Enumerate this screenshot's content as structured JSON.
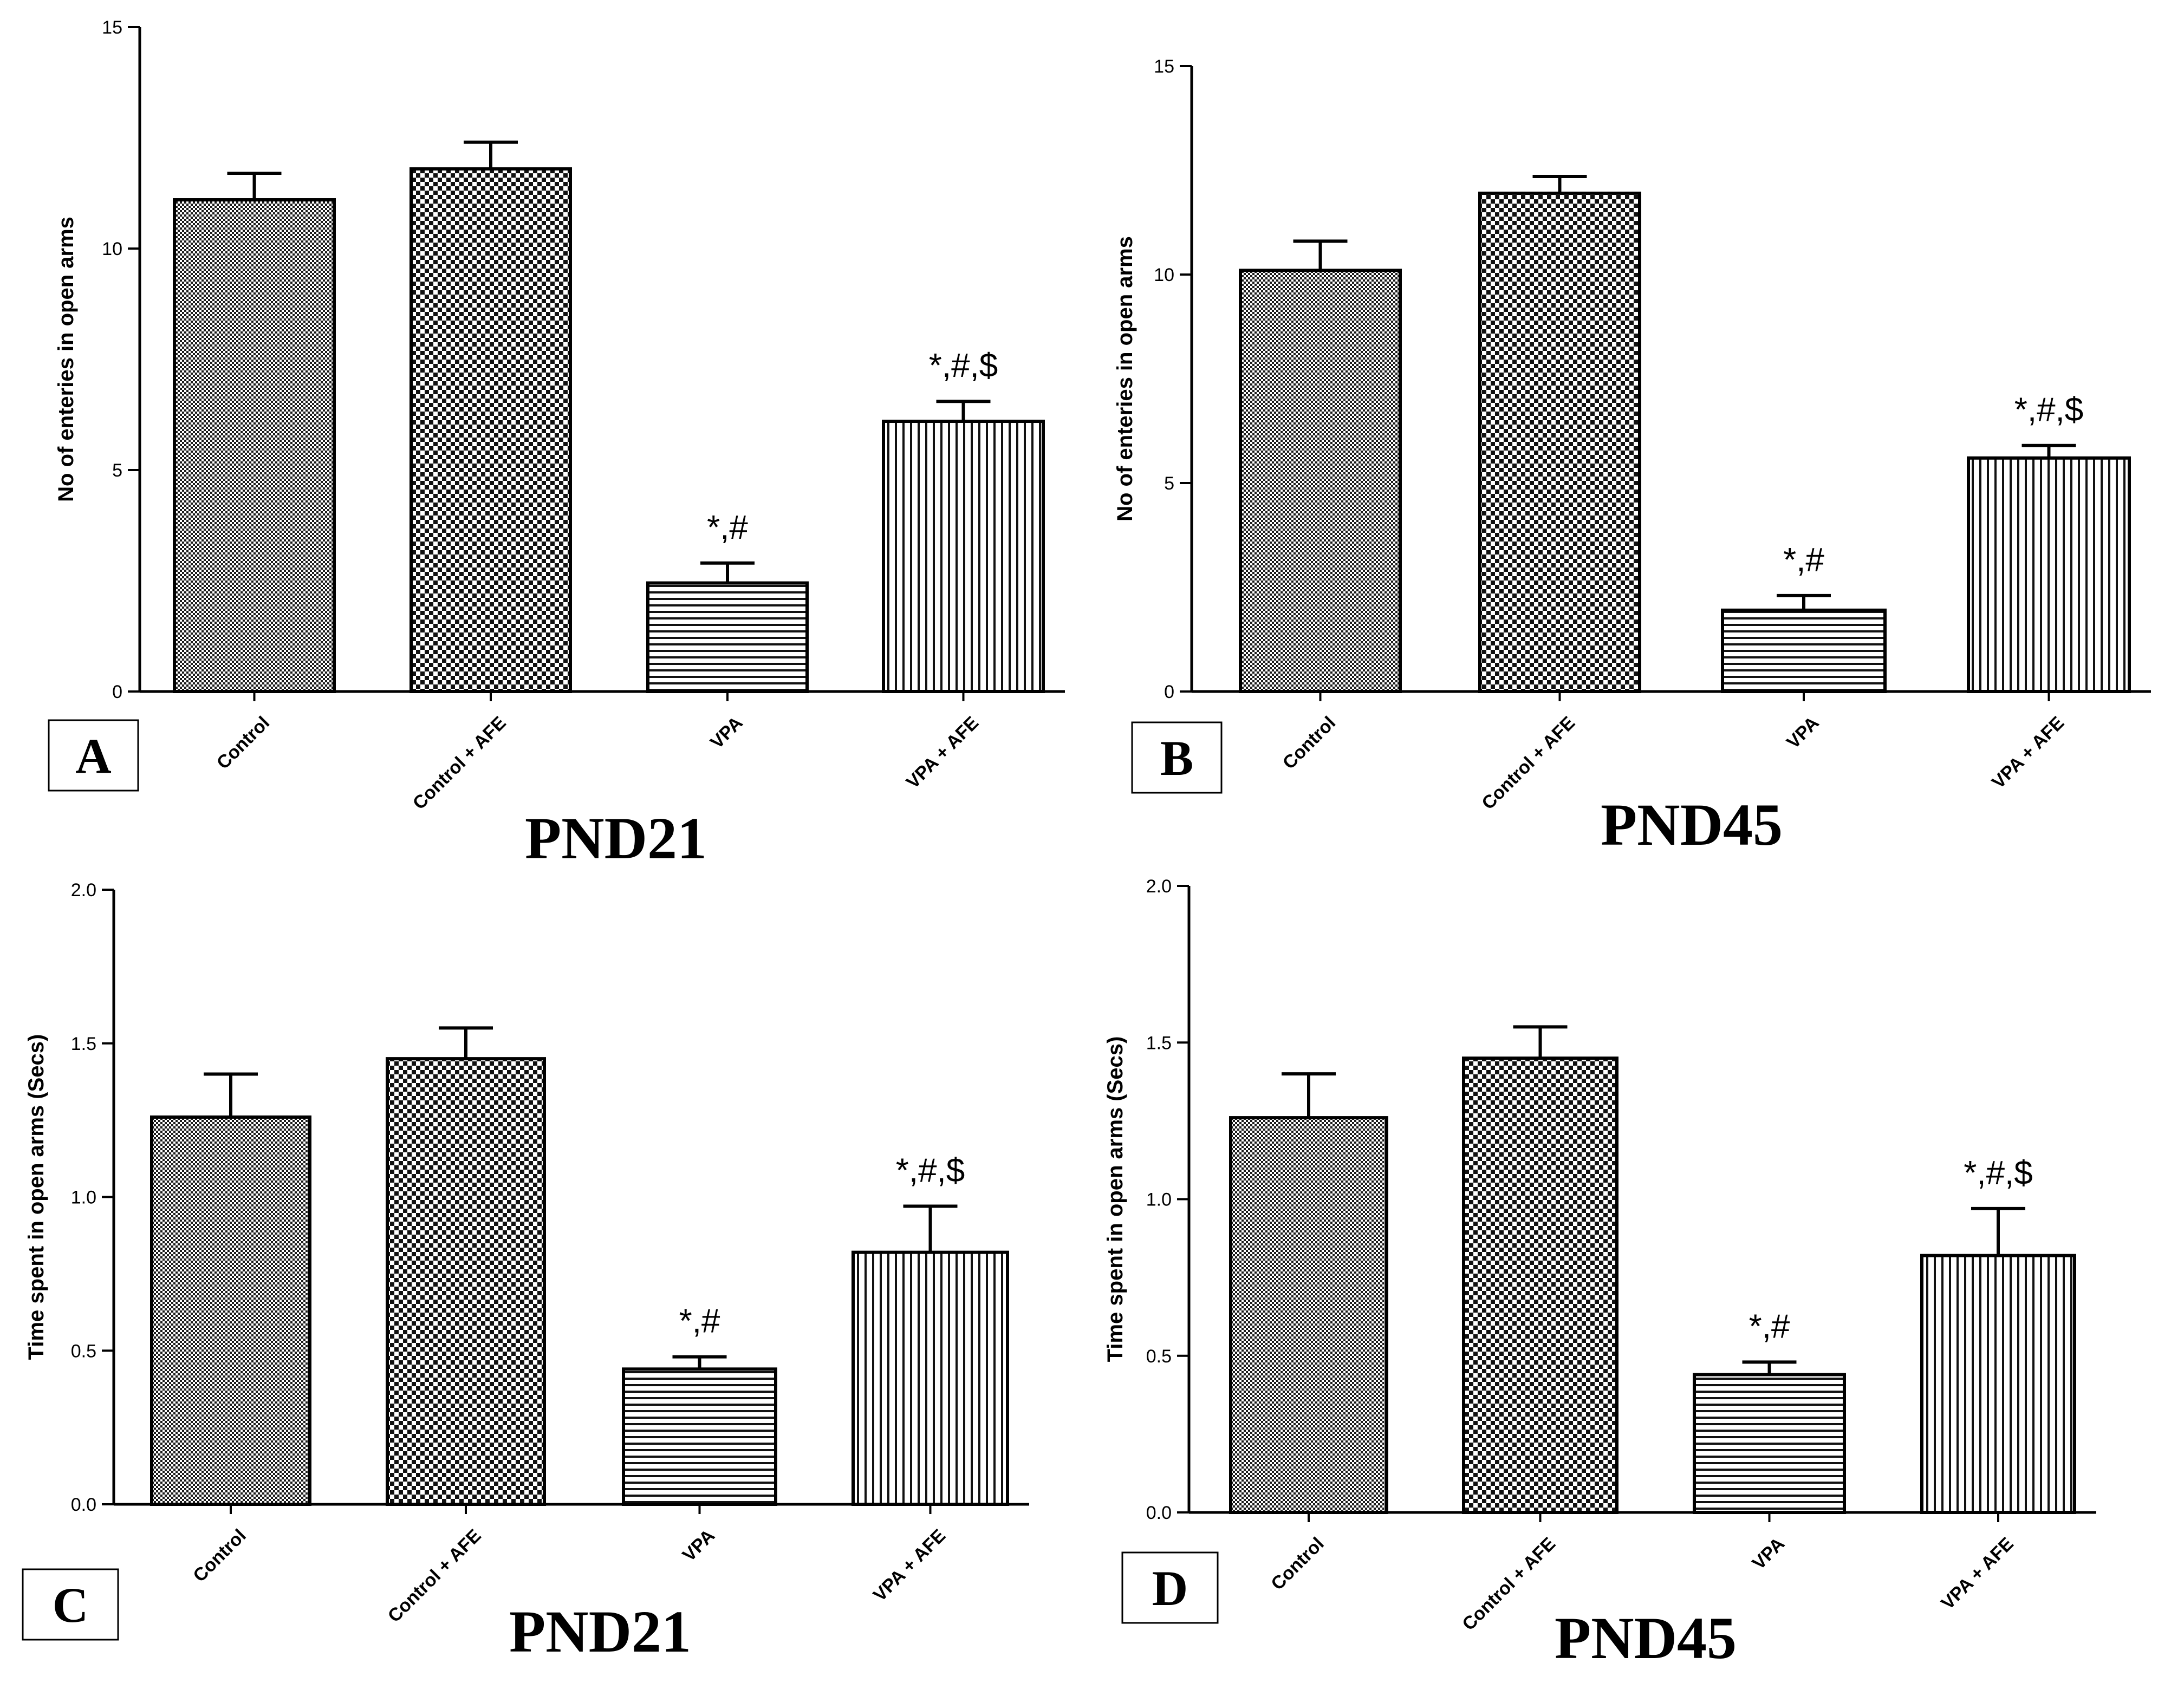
{
  "chart_data": [
    {
      "type": "bar",
      "panel": "A",
      "subtitle": "PND21",
      "ylabel": "No of enteries in open arms",
      "ylim": [
        0,
        15
      ],
      "yticks": [
        "0",
        "5",
        "10",
        "15"
      ],
      "categories": [
        "Control",
        "Control + AFE",
        "VPA",
        "VPA + AFE"
      ],
      "values": [
        11.1,
        11.8,
        2.45,
        6.1
      ],
      "errors": [
        0.6,
        0.6,
        0.45,
        0.45
      ],
      "significance": [
        "",
        "",
        "*,#",
        "*,#,$"
      ]
    },
    {
      "type": "bar",
      "panel": "B",
      "subtitle": "PND45",
      "ylabel": "No of enteries in open arms",
      "ylim": [
        0,
        15
      ],
      "yticks": [
        "0",
        "5",
        "10",
        "15"
      ],
      "categories": [
        "Control",
        "Control + AFE",
        "VPA",
        "VPA + AFE"
      ],
      "values": [
        10.1,
        11.95,
        1.95,
        5.6
      ],
      "errors": [
        0.7,
        0.4,
        0.35,
        0.3
      ],
      "significance": [
        "",
        "",
        "*,#",
        "*,#,$"
      ]
    },
    {
      "type": "bar",
      "panel": "C",
      "subtitle": "PND21",
      "ylabel": "Time spent in open arms (Secs)",
      "ylim": [
        0,
        2.0
      ],
      "yticks": [
        "0.0",
        "0.5",
        "1.0",
        "1.5",
        "2.0"
      ],
      "categories": [
        "Control",
        "Control + AFE",
        "VPA",
        "VPA + AFE"
      ],
      "values": [
        1.26,
        1.45,
        0.44,
        0.82
      ],
      "errors": [
        0.14,
        0.1,
        0.04,
        0.15
      ],
      "significance": [
        "",
        "",
        "*,#",
        "*,#,$"
      ]
    },
    {
      "type": "bar",
      "panel": "D",
      "subtitle": "PND45",
      "ylabel": "Time spent in open arms (Secs)",
      "ylim": [
        0,
        2.0
      ],
      "yticks": [
        "0.0",
        "0.5",
        "1.0",
        "1.5",
        "2.0"
      ],
      "categories": [
        "Control",
        "Control + AFE",
        "VPA",
        "VPA + AFE"
      ],
      "values": [
        1.26,
        1.45,
        0.44,
        0.82
      ],
      "errors": [
        0.14,
        0.1,
        0.04,
        0.15
      ],
      "significance": [
        "",
        "",
        "*,#",
        "*,#,$"
      ]
    }
  ]
}
